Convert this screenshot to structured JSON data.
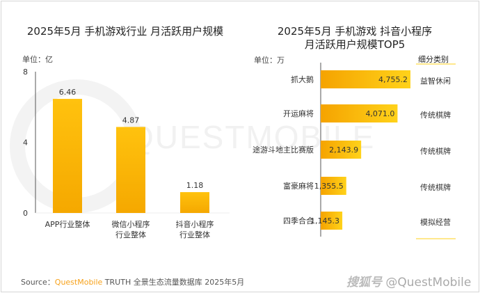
{
  "colors": {
    "bar_start": "#f5a300",
    "bar_end": "#ffd21a",
    "accent": "#f7a21b"
  },
  "watermark": "QUESTMOBILE",
  "chart_data": [
    {
      "type": "bar",
      "title": "2025年5月  手机游戏行业 月活跃用户规模",
      "unit": "单位：亿",
      "ylim": [
        0,
        8
      ],
      "yticks": [
        "0",
        "4",
        "8"
      ],
      "categories": [
        "APP行业整体",
        "微信小程序\n行业整体",
        "抖音小程序\n行业整体"
      ],
      "values": [
        6.46,
        4.87,
        1.18
      ],
      "labels": [
        "6.46",
        "4.87",
        "1.18"
      ]
    },
    {
      "type": "bar",
      "orientation": "horizontal",
      "title": "2025年5月 手机游戏 抖音小程序",
      "title2": "月活跃用户规模TOP5",
      "unit": "单位：万",
      "category_header": "细分类别",
      "categories": [
        "抓大鹅",
        "开运麻将",
        "途游斗地主比赛版",
        "富豪麻将",
        "四季合合"
      ],
      "values": [
        4755.2,
        4071.0,
        2143.9,
        1355.5,
        1145.3
      ],
      "labels": [
        "4,755.2",
        "4,071.0",
        "2,143.9",
        "1,355.5",
        "1,145.3"
      ],
      "types": [
        "益智休闲",
        "传统棋牌",
        "传统棋牌",
        "传统棋牌",
        "模拟经营"
      ]
    }
  ],
  "footer": {
    "source_prefix": "Source：",
    "source_brand": "QuestMobile",
    "source_rest": " TRUTH 全景生态流量数据库 2025年5月",
    "credit_logo": "搜狐号",
    "credit": "@QuestMobile"
  }
}
